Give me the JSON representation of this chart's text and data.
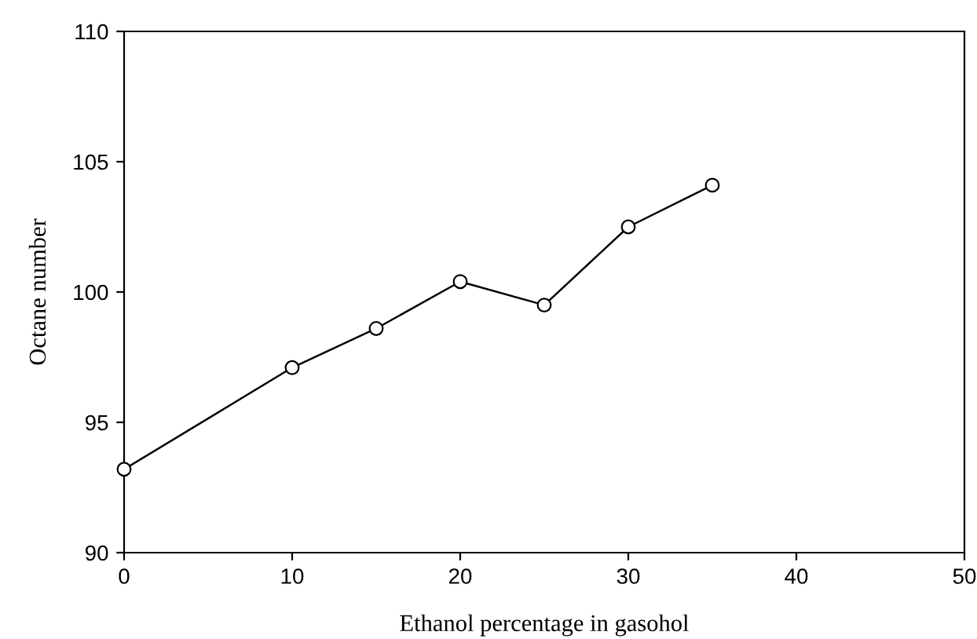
{
  "chart_data": {
    "type": "line",
    "xlabel": "Ethanol percentage in gasohol",
    "ylabel": "Octane number",
    "x": [
      0,
      10,
      15,
      20,
      25,
      30,
      35
    ],
    "series": [
      {
        "color": "#000000",
        "values": [
          93.2,
          97.1,
          98.6,
          100.4,
          99.5,
          102.5,
          104.1
        ]
      }
    ],
    "xlim": [
      0,
      50
    ],
    "xticks": [
      0,
      10,
      20,
      30,
      40,
      50
    ],
    "ylim": [
      90,
      110
    ],
    "yticks": [
      90,
      95,
      100,
      105,
      110
    ],
    "marker": "circle",
    "line_style": "solid",
    "grid": false,
    "legend": false
  }
}
